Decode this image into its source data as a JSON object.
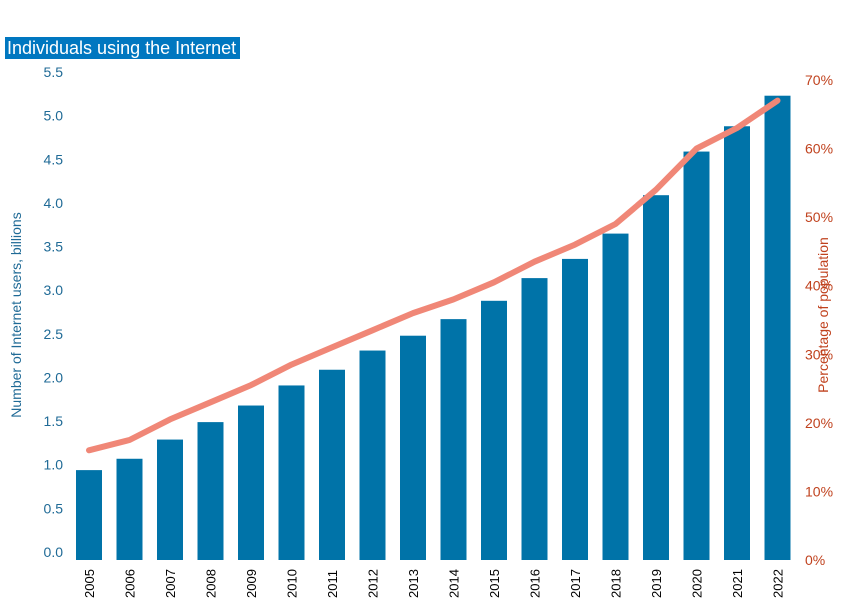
{
  "chart_data": {
    "type": "bar",
    "title": "Individuals using the Internet",
    "categories": [
      "2005",
      "2006",
      "2007",
      "2008",
      "2009",
      "2010",
      "2011",
      "2012",
      "2013",
      "2014",
      "2015",
      "2016",
      "2017",
      "2018",
      "2019",
      "2020",
      "2021",
      "2022"
    ],
    "series": [
      {
        "type": "bar",
        "axis": "left",
        "values": [
          1.03,
          1.16,
          1.38,
          1.58,
          1.77,
          2.0,
          2.18,
          2.4,
          2.57,
          2.76,
          2.97,
          3.23,
          3.45,
          3.74,
          4.18,
          4.68,
          4.97,
          5.32
        ],
        "color": "#0073a8"
      },
      {
        "type": "line",
        "axis": "right",
        "values": [
          16,
          17.5,
          20.5,
          23,
          25.5,
          28.5,
          31,
          33.5,
          36,
          38,
          40.5,
          43.5,
          46,
          49,
          54,
          60,
          63,
          67
        ],
        "color": "#f08777"
      }
    ],
    "ylabel": "Number of Internet users, billions",
    "y2label": "Percentage of population",
    "ylim": [
      0,
      5.5
    ],
    "y2lim": [
      0,
      70
    ],
    "yticks": [
      "0.0",
      "0.5",
      "1.0",
      "1.5",
      "2.0",
      "2.5",
      "3.0",
      "3.5",
      "4.0",
      "4.5",
      "5.0",
      "5.5"
    ],
    "y2ticks": [
      "0%",
      "10%",
      "20%",
      "30%",
      "40%",
      "50%",
      "60%",
      "70%"
    ],
    "grid": false,
    "left_axis_color": "#1f6a96",
    "right_axis_color": "#c0421e",
    "title_background": "#0077c0"
  }
}
